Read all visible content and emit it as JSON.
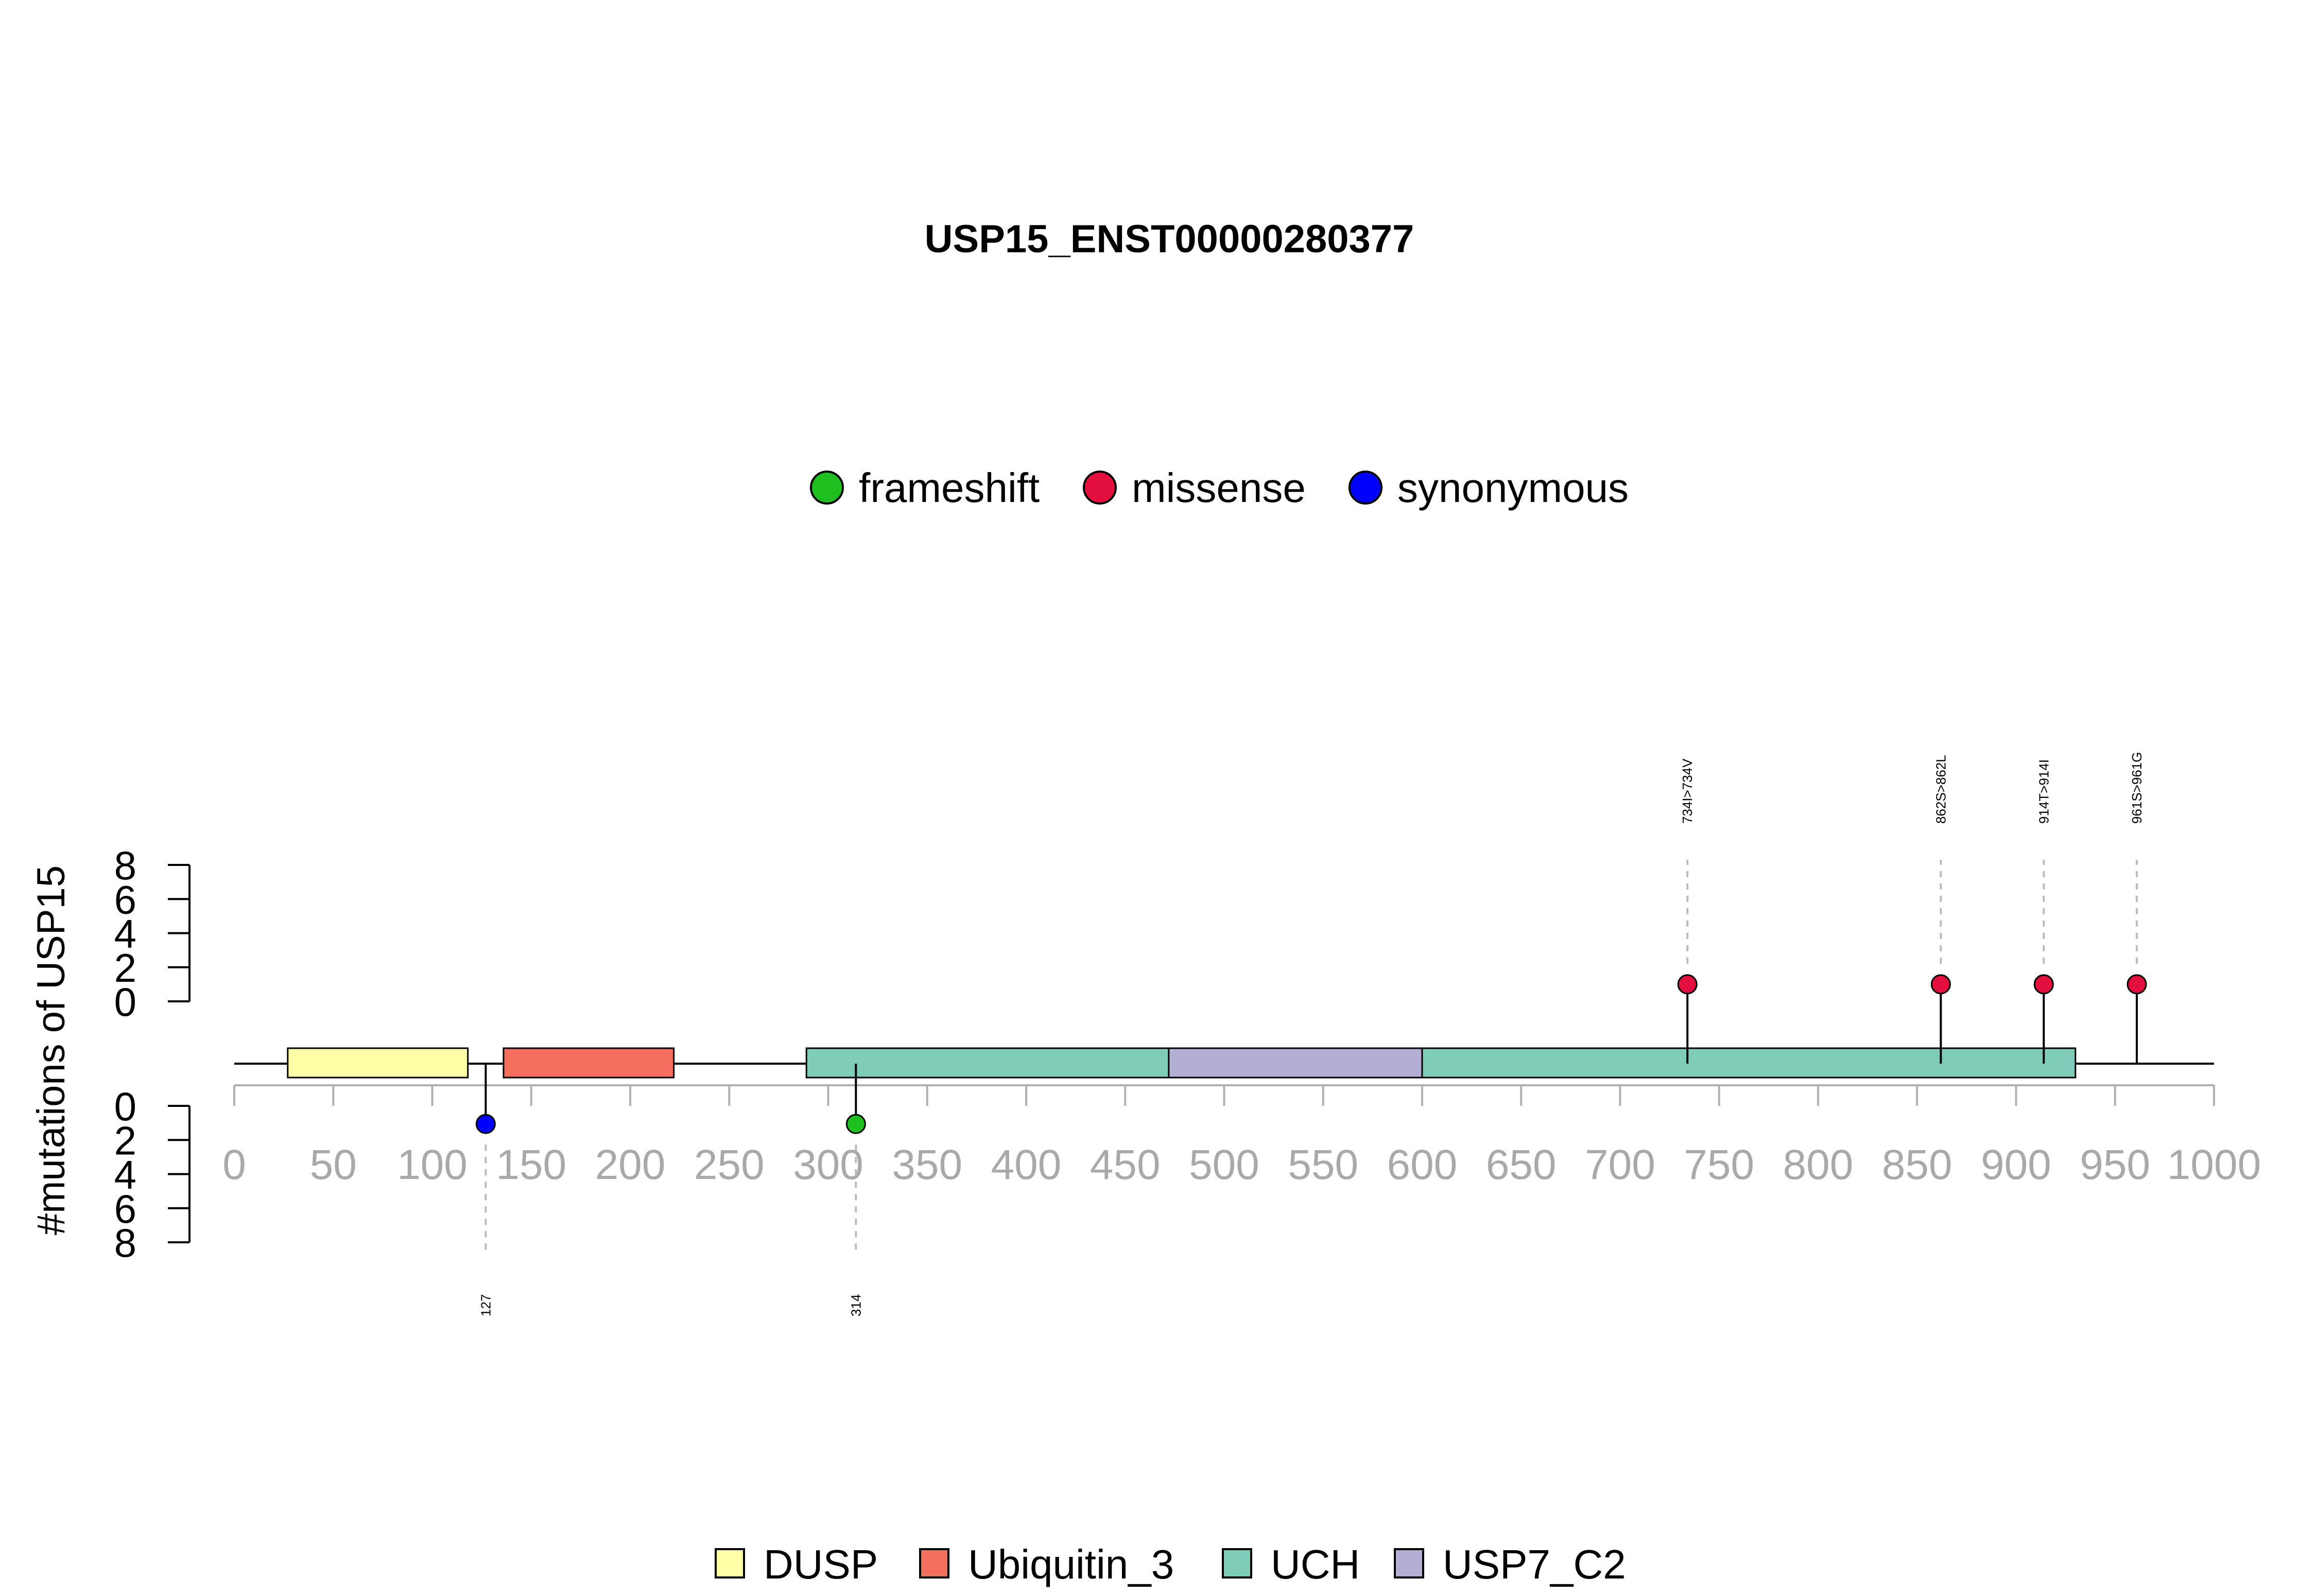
{
  "chart_data": {
    "type": "lollipop",
    "title": "USP15_ENST00000280377",
    "ylabel": "#mutations of USP15",
    "xlim": [
      0,
      1000
    ],
    "x_ticks": [
      0,
      50,
      100,
      150,
      200,
      250,
      300,
      350,
      400,
      450,
      500,
      550,
      600,
      650,
      700,
      750,
      800,
      850,
      900,
      950,
      1000
    ],
    "y_ticks_top": [
      0,
      2,
      4,
      6,
      8
    ],
    "y_ticks_bottom": [
      0,
      2,
      4,
      6,
      8
    ],
    "ylim": [
      0,
      8
    ],
    "mutation_legend": [
      {
        "name": "frameshift",
        "color": "#1fbf1f"
      },
      {
        "name": "missense",
        "color": "#e3103f"
      },
      {
        "name": "synonymous",
        "color": "#0000ff"
      }
    ],
    "domain_legend": [
      {
        "name": "DUSP",
        "color": "#ffffa8"
      },
      {
        "name": "Ubiquitin_3",
        "color": "#f46f5e"
      },
      {
        "name": "UCH",
        "color": "#7fcdb9"
      },
      {
        "name": "USP7_C2",
        "color": "#b3aed3"
      }
    ],
    "domains": [
      {
        "name": "DUSP",
        "start": 27,
        "end": 118
      },
      {
        "name": "Ubiquitin_3",
        "start": 136,
        "end": 222
      },
      {
        "name": "UCH",
        "start": 289,
        "end": 930
      },
      {
        "name": "USP7_C2",
        "start": 472,
        "end": 600
      }
    ],
    "mutations_top": [
      {
        "position": 734,
        "count": 1,
        "type": "missense",
        "label": "734I>734V"
      },
      {
        "position": 862,
        "count": 1,
        "type": "missense",
        "label": "862S>862L"
      },
      {
        "position": 914,
        "count": 1,
        "type": "missense",
        "label": "914T>914I"
      },
      {
        "position": 961,
        "count": 1,
        "type": "missense",
        "label": "961S>961G"
      }
    ],
    "mutations_bottom": [
      {
        "position": 127,
        "count": 1,
        "type": "synonymous",
        "label": "127"
      },
      {
        "position": 314,
        "count": 1,
        "type": "frameshift",
        "label": "314"
      }
    ]
  }
}
